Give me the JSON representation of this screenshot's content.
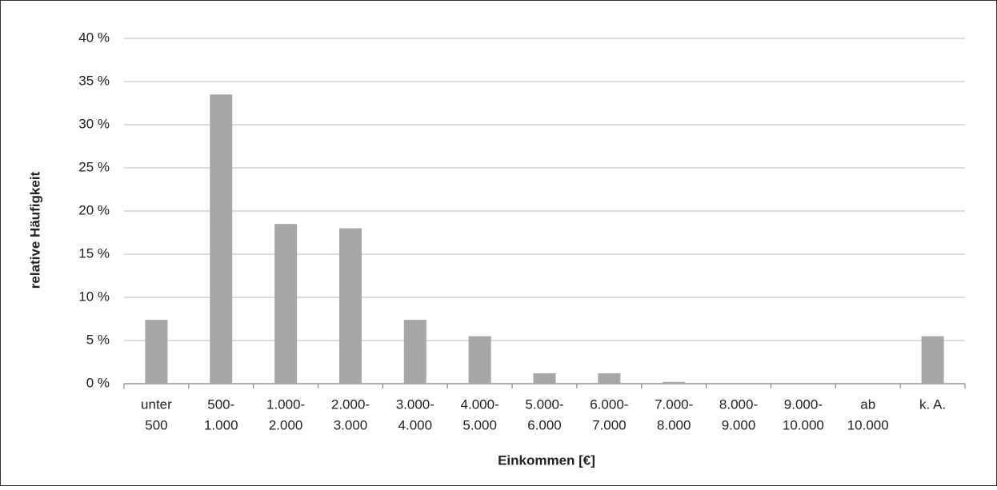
{
  "chart_data": {
    "type": "bar",
    "x_label": "Einkommen [€]",
    "y_label": "relative Häufigkeit",
    "categories": [
      [
        "unter",
        "500"
      ],
      [
        "500-",
        "1.000"
      ],
      [
        "1.000-",
        "2.000"
      ],
      [
        "2.000-",
        "3.000"
      ],
      [
        "3.000-",
        "4.000"
      ],
      [
        "4.000-",
        "5.000"
      ],
      [
        "5.000-",
        "6.000"
      ],
      [
        "6.000-",
        "7.000"
      ],
      [
        "7.000-",
        "8.000"
      ],
      [
        "8.000-",
        "9.000"
      ],
      [
        "9.000-",
        "10.000"
      ],
      [
        "ab",
        "10.000"
      ],
      [
        "k. A."
      ]
    ],
    "values": [
      7.4,
      33.5,
      18.5,
      18.0,
      7.4,
      5.5,
      1.2,
      1.2,
      0.2,
      0,
      0,
      0,
      5.5
    ],
    "color": "#a6a7a9",
    "ylim": [
      0,
      40
    ],
    "yticks": [
      {
        "value": 0,
        "label": "0 %"
      },
      {
        "value": 5,
        "label": "5 %"
      },
      {
        "value": 10,
        "label": "10 %"
      },
      {
        "value": 15,
        "label": "15 %"
      },
      {
        "value": 20,
        "label": "20 %"
      },
      {
        "value": 25,
        "label": "25 %"
      },
      {
        "value": 30,
        "label": "30 %"
      },
      {
        "value": 35,
        "label": "35 %"
      },
      {
        "value": 40,
        "label": "40 %"
      }
    ],
    "grid": true
  }
}
